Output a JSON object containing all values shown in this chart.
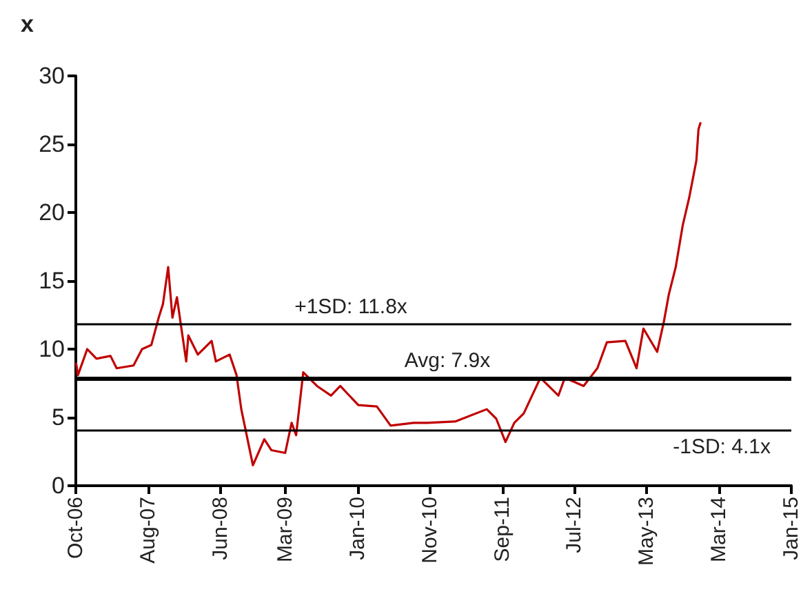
{
  "chart_data": {
    "type": "line",
    "ylabel": "x",
    "x": [
      "2006-10-02",
      "2006-10-10",
      "2006-11-18",
      "2006-12-27",
      "2007-02-24",
      "2007-03-22",
      "2007-06-01",
      "2007-07-07",
      "2007-08-15",
      "2007-09-15",
      "2007-10-03",
      "2007-10-25",
      "2007-11-12",
      "2007-12-01",
      "2007-12-19",
      "2008-01-09",
      "2008-01-18",
      "2008-02-27",
      "2008-04-25",
      "2008-05-13",
      "2008-07-10",
      "2008-08-08",
      "2008-08-28",
      "2008-10-16",
      "2008-12-03",
      "2009-01-02",
      "2009-03-01",
      "2009-03-28",
      "2009-04-16",
      "2009-05-16",
      "2009-07-13",
      "2009-09-10",
      "2009-10-19",
      "2010-01-03",
      "2010-03-22",
      "2010-05-19",
      "2010-08-24",
      "2010-10-21",
      "2011-02-15",
      "2011-06-28",
      "2011-08-07",
      "2011-09-15",
      "2011-10-22",
      "2011-12-01",
      "2012-02-09",
      "2012-04-25",
      "2012-05-22",
      "2012-08-09",
      "2012-10-06",
      "2012-11-15",
      "2013-02-01",
      "2013-03-20",
      "2013-04-18",
      "2013-06-15",
      "2013-07-13",
      "2013-08-03",
      "2013-09-01",
      "2013-10-01",
      "2013-10-28",
      "2013-11-27",
      "2013-12-06",
      "2013-12-15"
    ],
    "series": [
      {
        "color": "#c00000",
        "values": [
          9.0,
          8.1,
          10.0,
          9.3,
          9.5,
          8.6,
          8.8,
          10.0,
          10.3,
          12.3,
          13.3,
          16.0,
          12.3,
          13.8,
          11.6,
          9.1,
          11.0,
          9.6,
          10.6,
          9.1,
          9.6,
          8.1,
          5.6,
          1.5,
          3.4,
          2.6,
          2.4,
          4.6,
          3.7,
          8.3,
          7.3,
          6.6,
          7.3,
          5.9,
          5.8,
          4.4,
          4.6,
          4.6,
          4.7,
          5.6,
          4.9,
          3.2,
          4.6,
          5.3,
          7.9,
          6.6,
          7.9,
          7.3,
          8.6,
          10.5,
          10.6,
          8.6,
          11.5,
          9.8,
          12.0,
          14.0,
          16.0,
          19.1,
          21.1,
          23.8,
          26.1,
          26.6
        ]
      }
    ],
    "xlim": [
      "2006-10-01",
      "2015-01-01"
    ],
    "xticks": [
      {
        "value": "2006-10-01",
        "label": "Oct-06"
      },
      {
        "value": "2007-08-01",
        "label": "Aug-07"
      },
      {
        "value": "2008-06-01",
        "label": "Jun-08"
      },
      {
        "value": "2009-03-01",
        "label": "Mar-09"
      },
      {
        "value": "2010-01-01",
        "label": "Jan-10"
      },
      {
        "value": "2010-11-01",
        "label": "Nov-10"
      },
      {
        "value": "2011-09-01",
        "label": "Sep-11"
      },
      {
        "value": "2012-07-01",
        "label": "Jul-12"
      },
      {
        "value": "2013-05-01",
        "label": "May-13"
      },
      {
        "value": "2014-03-01",
        "label": "Mar-14"
      },
      {
        "value": "2015-01-01",
        "label": "Jan-15"
      }
    ],
    "ylim": [
      0,
      30
    ],
    "yticks": [
      0,
      5,
      10,
      15,
      20,
      25,
      30
    ],
    "ref_lines": [
      {
        "axis": "y",
        "value": 11.8,
        "label": "+1SD: 11.8x",
        "color": "#000000"
      },
      {
        "axis": "y",
        "value": 7.9,
        "label": "Avg: 7.9x",
        "color": "#000000"
      },
      {
        "axis": "y",
        "value": 4.1,
        "label": "-1SD: 4.1x",
        "color": "#000000"
      }
    ],
    "grid": false,
    "marker": "none",
    "line_style": "solid"
  }
}
